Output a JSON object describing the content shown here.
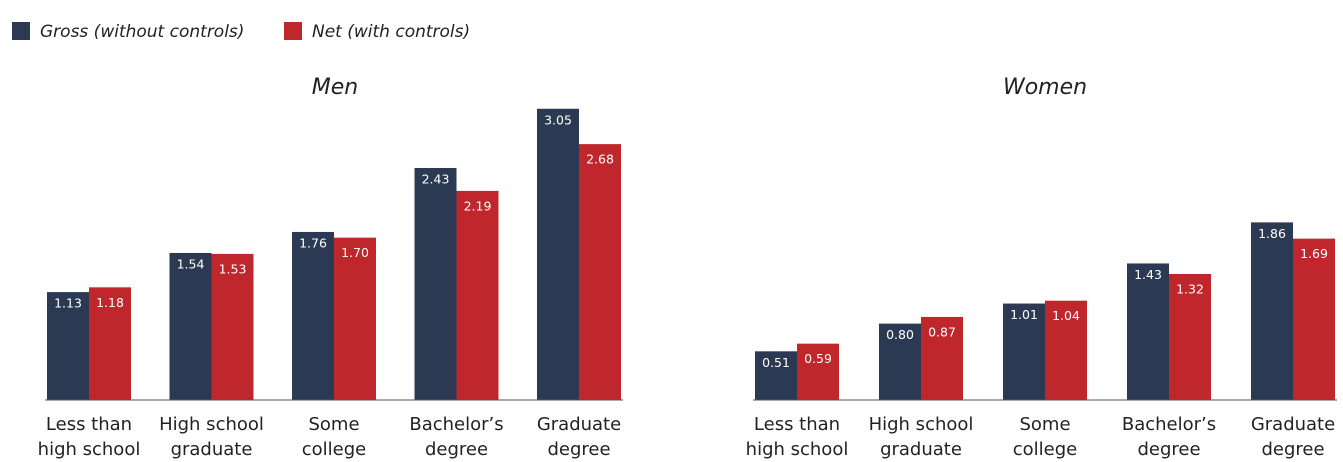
{
  "chart_data": [
    {
      "type": "bar",
      "title": "Men",
      "categories": [
        [
          "Less than",
          "high school"
        ],
        [
          "High school",
          "graduate"
        ],
        [
          "Some",
          "college"
        ],
        [
          "Bachelor’s",
          "degree"
        ],
        [
          "Graduate",
          "degree"
        ]
      ],
      "series": [
        {
          "name": "Gross (without controls)",
          "color": "#2b3a52",
          "values": [
            1.13,
            1.54,
            1.76,
            2.43,
            3.05
          ],
          "value_labels": [
            "1.13",
            "1.54",
            "1.76",
            "2.43",
            "3.05"
          ]
        },
        {
          "name": "Net (with controls)",
          "color": "#c0272d",
          "values": [
            1.18,
            1.53,
            1.7,
            2.19,
            2.68
          ],
          "value_labels": [
            "1.18",
            "1.53",
            "1.70",
            "2.19",
            "2.68"
          ]
        }
      ],
      "ylim": [
        0,
        3.1
      ]
    },
    {
      "type": "bar",
      "title": "Women",
      "categories": [
        [
          "Less than",
          "high school"
        ],
        [
          "High school",
          "graduate"
        ],
        [
          "Some",
          "college"
        ],
        [
          "Bachelor’s",
          "degree"
        ],
        [
          "Graduate",
          "degree"
        ]
      ],
      "series": [
        {
          "color": "#2b3a52",
          "values": [
            0.51,
            0.8,
            1.01,
            1.43,
            1.86
          ],
          "value_labels": [
            "0.51",
            "0.80",
            "1.01",
            "1.43",
            "1.86"
          ]
        },
        {
          "color": "#c0272d",
          "values": [
            0.59,
            0.87,
            1.04,
            1.32,
            1.69
          ],
          "value_labels": [
            "0.59",
            "0.87",
            "1.04",
            "1.32",
            "1.69"
          ]
        }
      ],
      "ylim": [
        0,
        3.1
      ]
    }
  ]
}
